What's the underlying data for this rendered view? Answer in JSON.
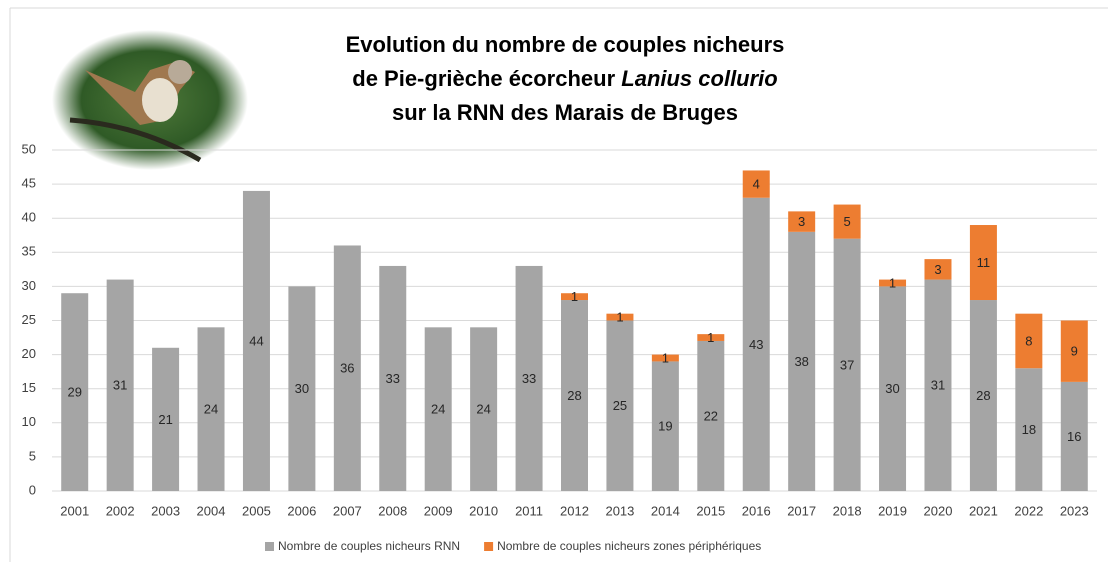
{
  "chart_data": {
    "type": "stacked-bar",
    "title": [
      "Evolution du nombre de couples nicheurs",
      "de Pie-grièche écorcheur",
      "Lanius collurio",
      "sur la RNN des Marais de Bruges"
    ],
    "categories": [
      "2001",
      "2002",
      "2003",
      "2004",
      "2005",
      "2006",
      "2007",
      "2008",
      "2009",
      "2010",
      "2011",
      "2012",
      "2013",
      "2014",
      "2015",
      "2016",
      "2017",
      "2018",
      "2019",
      "2020",
      "2021",
      "2022",
      "2023"
    ],
    "series": [
      {
        "name": "Nombre de couples nicheurs RNN",
        "color": "#a5a5a5",
        "values": [
          29,
          31,
          21,
          24,
          44,
          30,
          36,
          33,
          24,
          24,
          33,
          28,
          25,
          19,
          22,
          43,
          38,
          37,
          30,
          31,
          28,
          18,
          16
        ]
      },
      {
        "name": "Nombre de couples nicheurs zones périphériques",
        "color": "#ed7d31",
        "values": [
          null,
          null,
          null,
          null,
          null,
          null,
          null,
          null,
          null,
          null,
          null,
          1,
          1,
          1,
          1,
          4,
          3,
          5,
          1,
          3,
          11,
          8,
          9
        ]
      }
    ],
    "ylim": [
      0,
      50
    ],
    "yticks": [
      0,
      5,
      10,
      15,
      20,
      25,
      30,
      35,
      40,
      45,
      50
    ],
    "grid": true,
    "legend": "bottom"
  }
}
